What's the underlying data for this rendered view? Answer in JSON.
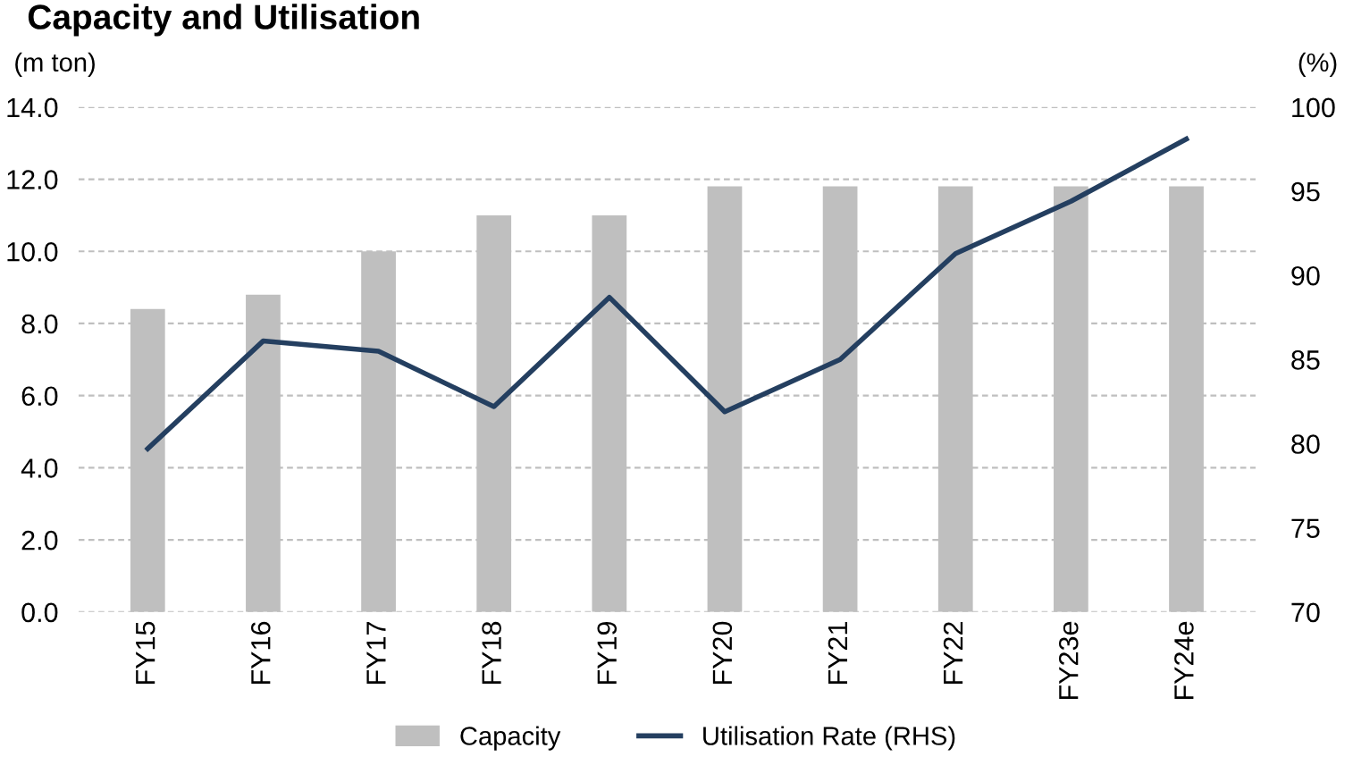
{
  "chart_data": {
    "type": "bar",
    "title": "Capacity and Utilisation",
    "ylabel": "(m ton)",
    "y2label": "(%)",
    "categories": [
      "FY15",
      "FY16",
      "FY17",
      "FY18",
      "FY19",
      "FY20",
      "FY21",
      "FY22",
      "FY23e",
      "FY24e"
    ],
    "series": [
      {
        "name": "Capacity",
        "color": "#bfbfbf",
        "values": [
          8.4,
          8.8,
          10.0,
          11.0,
          11.0,
          11.8,
          11.8,
          11.8,
          11.8,
          11.8
        ]
      },
      {
        "name": "Utilisation Rate (RHS)",
        "type": "line",
        "axis": "y2",
        "color": "#243f60",
        "values": [
          79.7,
          86.1,
          85.5,
          82.2,
          88.7,
          81.9,
          85.0,
          91.3,
          94.4,
          98.1
        ]
      }
    ],
    "ylim": [
      0,
      14
    ],
    "yticks": [
      {
        "value": 0,
        "label": "0.0"
      },
      {
        "value": 2,
        "label": "2.0"
      },
      {
        "value": 4,
        "label": "4.0"
      },
      {
        "value": 6,
        "label": "6.0"
      },
      {
        "value": 8,
        "label": "8.0"
      },
      {
        "value": 10,
        "label": "10.0"
      },
      {
        "value": 12,
        "label": "12.0"
      },
      {
        "value": 14,
        "label": "14.0"
      }
    ],
    "y2lim": [
      70,
      100
    ],
    "y2ticks": [
      70,
      75,
      80,
      85,
      90,
      95,
      100
    ],
    "grid": "y",
    "legend": "bottom"
  }
}
